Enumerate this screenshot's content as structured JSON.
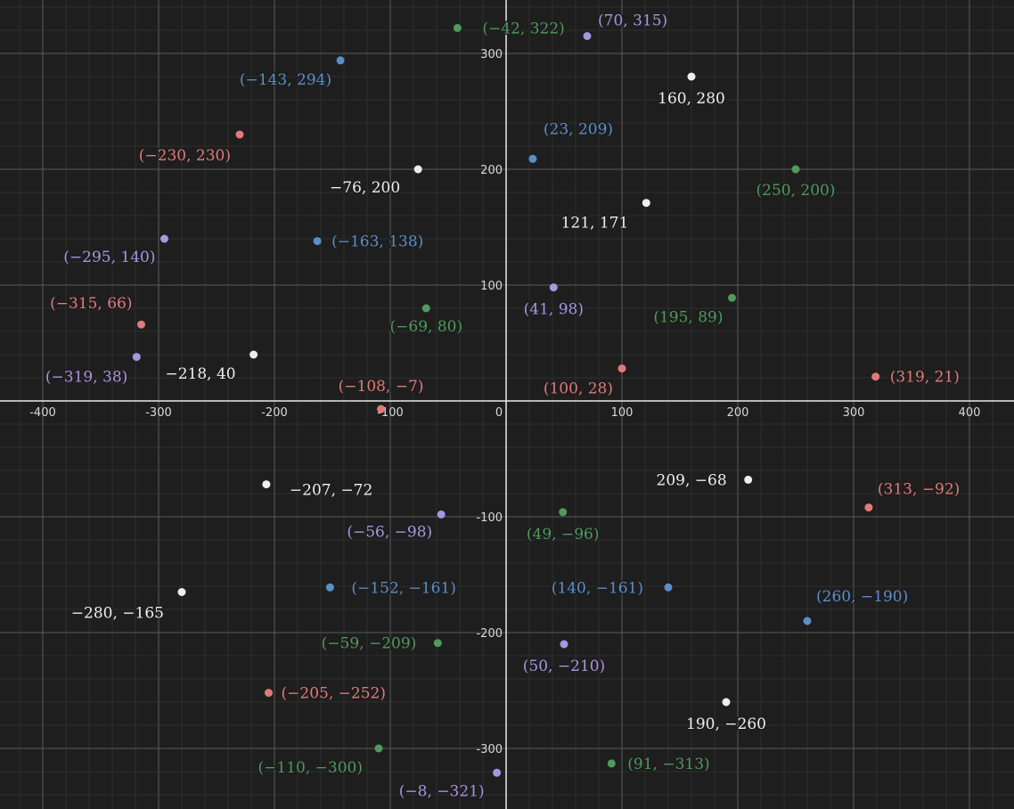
{
  "chart_data": {
    "type": "scatter",
    "title": "",
    "xlabel": "",
    "ylabel": "",
    "xlim": [
      -420,
      440
    ],
    "ylim": [
      -350,
      345
    ],
    "grid": true,
    "x_ticks": [
      -400,
      -300,
      -200,
      -100,
      0,
      100,
      200,
      300,
      400
    ],
    "y_ticks": [
      -300,
      -200,
      -100,
      100,
      200,
      300
    ],
    "colors": {
      "red": "#e07a7a",
      "blue": "#5a8fc8",
      "green": "#4f9a5c",
      "purple": "#a796e0",
      "white": "#eeeeee",
      "background": "#1e1e1e",
      "grid_major": "#5a5a5a",
      "grid_minor": "#2e2e2e",
      "axis": "#e8e8e8"
    },
    "points": [
      {
        "x": -42,
        "y": 322,
        "label": "(−42, 322)",
        "color": "green"
      },
      {
        "x": 70,
        "y": 315,
        "label": "(70, 315)",
        "color": "purple"
      },
      {
        "x": -143,
        "y": 294,
        "label": "(−143, 294)",
        "color": "blue"
      },
      {
        "x": 160,
        "y": 280,
        "label": "160, 280",
        "color": "white"
      },
      {
        "x": -230,
        "y": 230,
        "label": "(−230, 230)",
        "color": "red"
      },
      {
        "x": 23,
        "y": 209,
        "label": "(23, 209)",
        "color": "blue"
      },
      {
        "x": -76,
        "y": 200,
        "label": "−76, 200",
        "color": "white"
      },
      {
        "x": 250,
        "y": 200,
        "label": "(250, 200)",
        "color": "green"
      },
      {
        "x": 121,
        "y": 171,
        "label": "121, 171",
        "color": "white"
      },
      {
        "x": -295,
        "y": 140,
        "label": "(−295, 140)",
        "color": "purple"
      },
      {
        "x": -163,
        "y": 138,
        "label": "(−163, 138)",
        "color": "blue"
      },
      {
        "x": 41,
        "y": 98,
        "label": "(41, 98)",
        "color": "purple"
      },
      {
        "x": 195,
        "y": 89,
        "label": "(195, 89)",
        "color": "green"
      },
      {
        "x": -315,
        "y": 66,
        "label": "(−315, 66)",
        "color": "red"
      },
      {
        "x": -69,
        "y": 80,
        "label": "(−69, 80)",
        "color": "green"
      },
      {
        "x": -319,
        "y": 38,
        "label": "(−319, 38)",
        "color": "purple"
      },
      {
        "x": -218,
        "y": 40,
        "label": "−218, 40",
        "color": "white"
      },
      {
        "x": 100,
        "y": 28,
        "label": "(100, 28)",
        "color": "red"
      },
      {
        "x": 319,
        "y": 21,
        "label": "(319, 21)",
        "color": "red"
      },
      {
        "x": -108,
        "y": -7,
        "label": "(−108, −7)",
        "color": "red"
      },
      {
        "x": -207,
        "y": -72,
        "label": "−207, −72",
        "color": "white"
      },
      {
        "x": 209,
        "y": -68,
        "label": "209, −68",
        "color": "white"
      },
      {
        "x": 313,
        "y": -92,
        "label": "(313, −92)",
        "color": "red"
      },
      {
        "x": -56,
        "y": -98,
        "label": "(−56, −98)",
        "color": "purple"
      },
      {
        "x": 49,
        "y": -96,
        "label": "(49, −96)",
        "color": "green"
      },
      {
        "x": -152,
        "y": -161,
        "label": "(−152, −161)",
        "color": "blue"
      },
      {
        "x": 140,
        "y": -161,
        "label": "(140, −161)",
        "color": "blue"
      },
      {
        "x": -280,
        "y": -165,
        "label": "−280, −165",
        "color": "white"
      },
      {
        "x": 260,
        "y": -190,
        "label": "(260, −190)",
        "color": "blue"
      },
      {
        "x": -59,
        "y": -209,
        "label": "(−59, −209)",
        "color": "green"
      },
      {
        "x": 50,
        "y": -210,
        "label": "(50, −210)",
        "color": "purple"
      },
      {
        "x": -205,
        "y": -252,
        "label": "(−205, −252)",
        "color": "red"
      },
      {
        "x": 190,
        "y": -260,
        "label": "190, −260",
        "color": "white"
      },
      {
        "x": -110,
        "y": -300,
        "label": "(−110, −300)",
        "color": "green"
      },
      {
        "x": 91,
        "y": -313,
        "label": "(91, −313)",
        "color": "green"
      },
      {
        "x": -8,
        "y": -321,
        "label": "(−8, −321)",
        "color": "purple"
      }
    ]
  }
}
